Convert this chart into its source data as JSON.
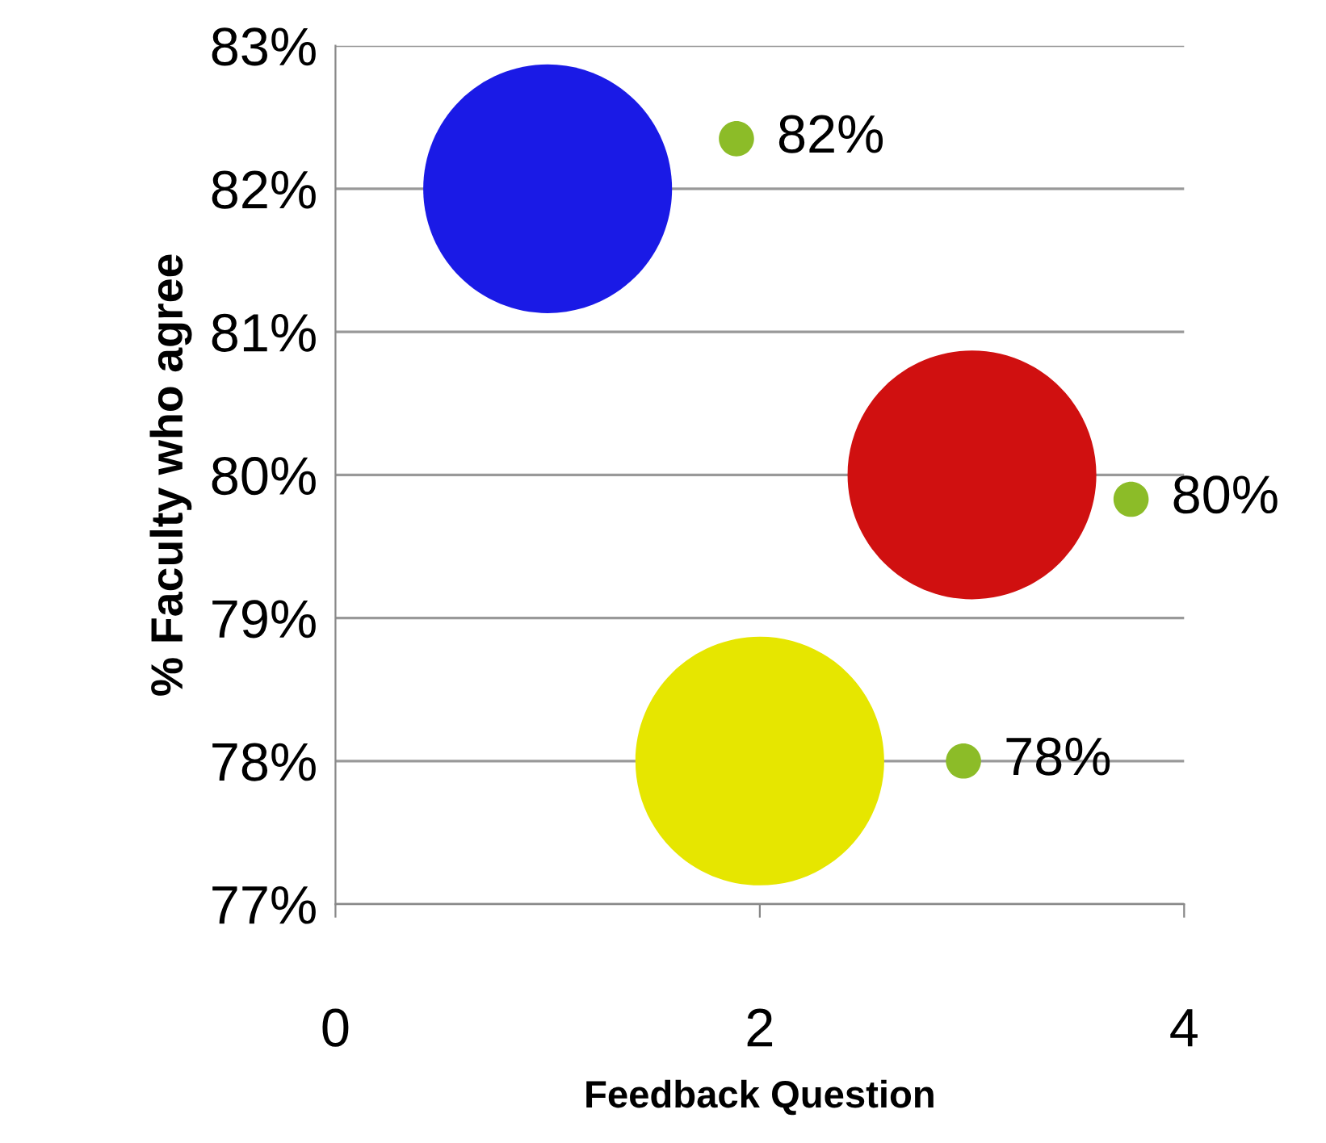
{
  "chart_data": {
    "type": "bubble",
    "xlabel": "Feedback Question",
    "ylabel": "% Faculty who agree",
    "series": [
      {
        "colors": [
          "#1a1ae6",
          "#d01010",
          "#e6e600"
        ],
        "x": [
          1,
          3,
          2
        ],
        "values": [
          82,
          80,
          78
        ],
        "sizes": [
          1,
          1,
          1
        ]
      },
      {
        "color": "#8cbc28",
        "x": [
          1.89,
          3.75,
          2.96
        ],
        "values": [
          82.35,
          79.83,
          78.0
        ],
        "sizes": [
          0.02,
          0.02,
          0.02
        ]
      }
    ],
    "annotations": [
      {
        "text": "82%",
        "x": 1.89,
        "y": 82.35
      },
      {
        "text": "80%",
        "x": 3.75,
        "y": 79.83
      },
      {
        "text": "78%",
        "x": 2.96,
        "y": 78.0
      }
    ],
    "xlim": [
      0,
      4
    ],
    "xticks": [
      0,
      2,
      4
    ],
    "ylim": [
      77,
      83
    ],
    "yticks": [
      {
        "value": 77,
        "label": "77%"
      },
      {
        "value": 78,
        "label": "78%"
      },
      {
        "value": 79,
        "label": "79%"
      },
      {
        "value": 80,
        "label": "80%"
      },
      {
        "value": 81,
        "label": "81%"
      },
      {
        "value": 82,
        "label": "82%"
      },
      {
        "value": 83,
        "label": "83%"
      }
    ],
    "grid": "y",
    "legend": false
  }
}
